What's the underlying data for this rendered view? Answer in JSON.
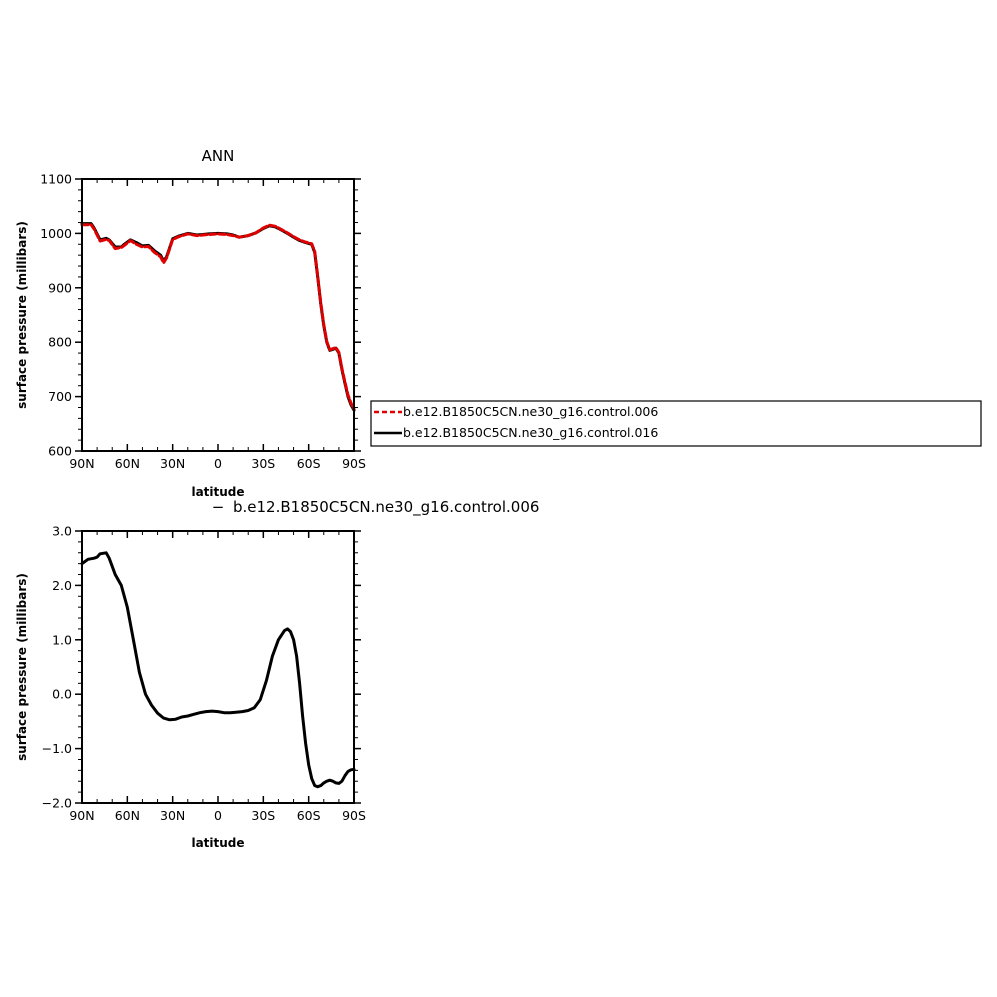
{
  "chart_data": [
    {
      "type": "line",
      "title": "ANN",
      "xlabel": "latitude",
      "ylabel": "surface pressure (millibars)",
      "xlim": [
        90,
        -90
      ],
      "ylim": [
        600,
        1100
      ],
      "xticks": [
        {
          "value": 90,
          "label": "90N"
        },
        {
          "value": 60,
          "label": "60N"
        },
        {
          "value": 30,
          "label": "30N"
        },
        {
          "value": 0,
          "label": "0"
        },
        {
          "value": -30,
          "label": "30S"
        },
        {
          "value": -60,
          "label": "60S"
        },
        {
          "value": -90,
          "label": "90S"
        }
      ],
      "yticks": [
        {
          "value": 600,
          "label": "600"
        },
        {
          "value": 700,
          "label": "700"
        },
        {
          "value": 800,
          "label": "800"
        },
        {
          "value": 900,
          "label": "900"
        },
        {
          "value": 1000,
          "label": "1000"
        },
        {
          "value": 1100,
          "label": "1100"
        }
      ],
      "legend_position": "right",
      "series": [
        {
          "name": "b.e12.B1850C5CN.ne30_g16.control.006",
          "color": "#000000",
          "dash": "solid",
          "x": [
            90,
            84,
            82,
            78,
            74,
            72,
            68,
            64,
            62,
            58,
            54,
            50,
            46,
            42,
            38,
            36,
            34,
            30,
            26,
            20,
            14,
            10,
            6,
            0,
            -6,
            -10,
            -14,
            -20,
            -25,
            -30,
            -34,
            -38,
            -42,
            -46,
            -50,
            -54,
            -58,
            -62,
            -64,
            -66,
            -68,
            -70,
            -72,
            -74,
            -76,
            -78,
            -80,
            -82,
            -84,
            -86,
            -88,
            -90
          ],
          "y": [
            1018,
            1018,
            1010,
            988,
            991,
            988,
            975,
            975,
            980,
            988,
            983,
            977,
            978,
            968,
            960,
            949,
            957,
            990,
            995,
            1000,
            997,
            998,
            999,
            1000,
            999,
            997,
            993,
            996,
            1001,
            1009,
            1014,
            1012,
            1006,
            1000,
            993,
            987,
            983,
            980,
            965,
            920,
            870,
            830,
            800,
            785,
            787,
            789,
            780,
            750,
            725,
            700,
            685,
            675
          ]
        },
        {
          "name": "b.e12.B1850C5CN.ne30_g16.control.016",
          "color": "#e00000",
          "dash": "dashed",
          "x": [
            90,
            84,
            82,
            78,
            74,
            72,
            68,
            64,
            62,
            58,
            54,
            50,
            46,
            42,
            38,
            36,
            34,
            30,
            26,
            20,
            14,
            10,
            6,
            0,
            -6,
            -10,
            -14,
            -20,
            -25,
            -30,
            -34,
            -38,
            -42,
            -46,
            -50,
            -54,
            -58,
            -62,
            -64,
            -66,
            -68,
            -70,
            -72,
            -74,
            -76,
            -78,
            -80,
            -82,
            -84,
            -86,
            -88,
            -90
          ],
          "y": [
            1016,
            1016,
            1008,
            986,
            989,
            987,
            972,
            974,
            978,
            987,
            980,
            975,
            976,
            965,
            957,
            946,
            955,
            989,
            994,
            999,
            996,
            997,
            998,
            999,
            998,
            996,
            993,
            996,
            1001,
            1010,
            1015,
            1013,
            1007,
            1001,
            994,
            988,
            984,
            981,
            967,
            922,
            872,
            832,
            801,
            786,
            788,
            790,
            781,
            752,
            727,
            703,
            688,
            677
          ]
        }
      ]
    },
    {
      "type": "line",
      "title": "b.e12.B1850C5CN.ne30_g16.control.006",
      "title_prefix": "−",
      "xlabel": "latitude",
      "ylabel": "surface pressure (millibars)",
      "xlim": [
        90,
        -90
      ],
      "ylim": [
        -2.0,
        3.0
      ],
      "xticks": [
        {
          "value": 90,
          "label": "90N"
        },
        {
          "value": 60,
          "label": "60N"
        },
        {
          "value": 30,
          "label": "30N"
        },
        {
          "value": 0,
          "label": "0"
        },
        {
          "value": -30,
          "label": "30S"
        },
        {
          "value": -60,
          "label": "60S"
        },
        {
          "value": -90,
          "label": "90S"
        }
      ],
      "yticks": [
        {
          "value": -2.0,
          "label": "−2.0"
        },
        {
          "value": -1.0,
          "label": "−1.0"
        },
        {
          "value": 0.0,
          "label": "0.0"
        },
        {
          "value": 1.0,
          "label": "1.0"
        },
        {
          "value": 2.0,
          "label": "2.0"
        },
        {
          "value": 3.0,
          "label": "3.0"
        }
      ],
      "series": [
        {
          "color": "#000000",
          "dash": "solid",
          "x": [
            90,
            86,
            82,
            80,
            78,
            74,
            72,
            68,
            64,
            60,
            56,
            52,
            48,
            44,
            40,
            36,
            32,
            28,
            24,
            20,
            16,
            12,
            8,
            4,
            0,
            -4,
            -8,
            -12,
            -16,
            -20,
            -24,
            -28,
            -32,
            -36,
            -40,
            -44,
            -46,
            -48,
            -50,
            -52,
            -54,
            -56,
            -58,
            -60,
            -62,
            -64,
            -66,
            -68,
            -70,
            -72,
            -74,
            -76,
            -78,
            -80,
            -82,
            -84,
            -86,
            -88,
            -90
          ],
          "y": [
            2.4,
            2.48,
            2.5,
            2.52,
            2.58,
            2.6,
            2.5,
            2.2,
            2.0,
            1.6,
            1.0,
            0.4,
            0.0,
            -0.2,
            -0.35,
            -0.44,
            -0.47,
            -0.46,
            -0.42,
            -0.4,
            -0.37,
            -0.34,
            -0.32,
            -0.31,
            -0.32,
            -0.34,
            -0.34,
            -0.33,
            -0.32,
            -0.3,
            -0.25,
            -0.1,
            0.25,
            0.7,
            1.0,
            1.17,
            1.2,
            1.15,
            1.0,
            0.7,
            0.2,
            -0.4,
            -0.9,
            -1.3,
            -1.55,
            -1.68,
            -1.7,
            -1.68,
            -1.63,
            -1.6,
            -1.58,
            -1.6,
            -1.63,
            -1.64,
            -1.6,
            -1.5,
            -1.42,
            -1.39,
            -1.38
          ]
        }
      ]
    }
  ]
}
